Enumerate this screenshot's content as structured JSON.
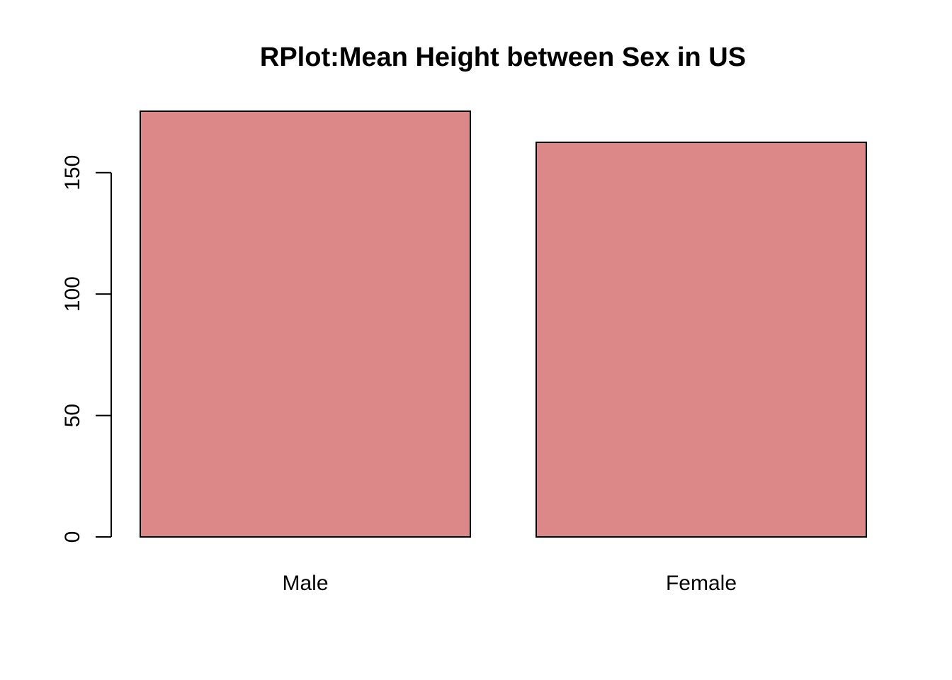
{
  "chart_data": {
    "type": "bar",
    "title": "RPlot:Mean Height between Sex in US",
    "xlabel": "",
    "ylabel": "",
    "categories": [
      "Male",
      "Female"
    ],
    "values": [
      175.3,
      162.5
    ],
    "yticks": [
      0,
      50,
      100,
      150
    ],
    "ytick_labels": [
      "0",
      "50",
      "100",
      "150"
    ],
    "ylim": [
      0,
      175.3
    ],
    "bar_color": "#DC8788",
    "border_color": "#000000",
    "grid": false,
    "legend": "none"
  }
}
